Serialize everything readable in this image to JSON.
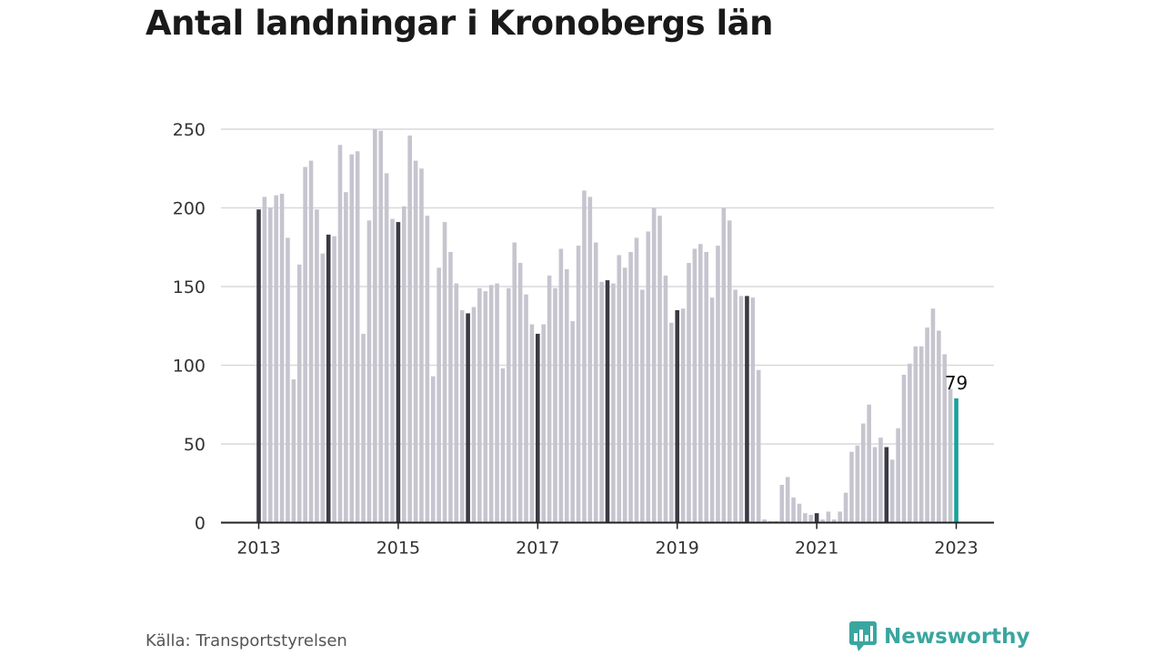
{
  "title": "Antal landningar i Kronobergs län",
  "source": "Källa: Transportstyrelsen",
  "brand": {
    "name": "Newsworthy",
    "icon": "newsworthy-logo-icon"
  },
  "colors": {
    "bar": "#c6c5cf",
    "january": "#3a3a44",
    "highlight": "#1aa19a",
    "grid": "#d9d9de",
    "axis": "#222222",
    "text": "#333333"
  },
  "chart_data": {
    "type": "bar",
    "title": "Antal landningar i Kronobergs län",
    "xlabel": "",
    "ylabel": "",
    "ylim": [
      0,
      250
    ],
    "yticks": [
      0,
      50,
      100,
      150,
      200,
      250
    ],
    "xticks": [
      "2013",
      "2015",
      "2017",
      "2019",
      "2021",
      "2023"
    ],
    "grid": true,
    "start": "2013-01",
    "end": "2023-01",
    "annotation": {
      "label": "79",
      "month": "2023-01"
    },
    "values": [
      199,
      207,
      200,
      208,
      209,
      181,
      91,
      164,
      226,
      230,
      199,
      171,
      183,
      182,
      240,
      210,
      234,
      236,
      120,
      192,
      250,
      249,
      222,
      193,
      191,
      201,
      246,
      230,
      225,
      195,
      93,
      162,
      191,
      172,
      152,
      135,
      133,
      137,
      149,
      147,
      151,
      152,
      98,
      149,
      178,
      165,
      145,
      126,
      120,
      126,
      157,
      149,
      174,
      161,
      128,
      176,
      211,
      207,
      178,
      153,
      154,
      152,
      170,
      162,
      172,
      181,
      148,
      185,
      200,
      195,
      157,
      127,
      135,
      136,
      165,
      174,
      177,
      172,
      143,
      176,
      200,
      192,
      148,
      144,
      144,
      143,
      97,
      2,
      1,
      1,
      24,
      29,
      16,
      12,
      6,
      5,
      6,
      2,
      7,
      2,
      7,
      19,
      45,
      49,
      63,
      75,
      48,
      54,
      48,
      40,
      60,
      94,
      101,
      112,
      112,
      124,
      136,
      122,
      107,
      85,
      79
    ]
  }
}
